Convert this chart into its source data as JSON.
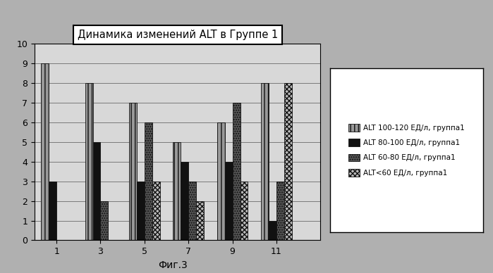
{
  "title": "Динамика изменений ALT в Группе 1",
  "x_labels": [
    "1",
    "3",
    "5",
    "7",
    "9",
    "11"
  ],
  "x_positions": [
    1,
    3,
    5,
    7,
    9,
    11
  ],
  "series": [
    {
      "label": "ALT 100-120 ЕД/л, группа1",
      "values": [
        9,
        8,
        7,
        5,
        6,
        8
      ],
      "hatch": "|||",
      "facecolor": "#999999",
      "edgecolor": "#111111"
    },
    {
      "label": "ALT 80-100 ЕД/л, группа1",
      "values": [
        3,
        5,
        3,
        4,
        4,
        1
      ],
      "hatch": "",
      "facecolor": "#111111",
      "edgecolor": "#111111"
    },
    {
      "label": "ALT 60-80 ЕД/л, группа1",
      "values": [
        0,
        2,
        6,
        3,
        7,
        3
      ],
      "hatch": ".....",
      "facecolor": "#555555",
      "edgecolor": "#111111"
    },
    {
      "label": "ALT<60 ЕД/л, группа1",
      "values": [
        0,
        0,
        3,
        2,
        3,
        8
      ],
      "hatch": "xxxxx",
      "facecolor": "#bbbbbb",
      "edgecolor": "#111111"
    }
  ],
  "ylim": [
    0,
    10
  ],
  "yticks": [
    0,
    1,
    2,
    3,
    4,
    5,
    6,
    7,
    8,
    9,
    10
  ],
  "xlim": [
    0,
    13
  ],
  "bar_width": 0.35,
  "background_color": "#b0b0b0",
  "plot_background": "#d8d8d8",
  "fig_caption": "Фиг.3",
  "legend_fontsize": 7.5,
  "title_fontsize": 10.5
}
